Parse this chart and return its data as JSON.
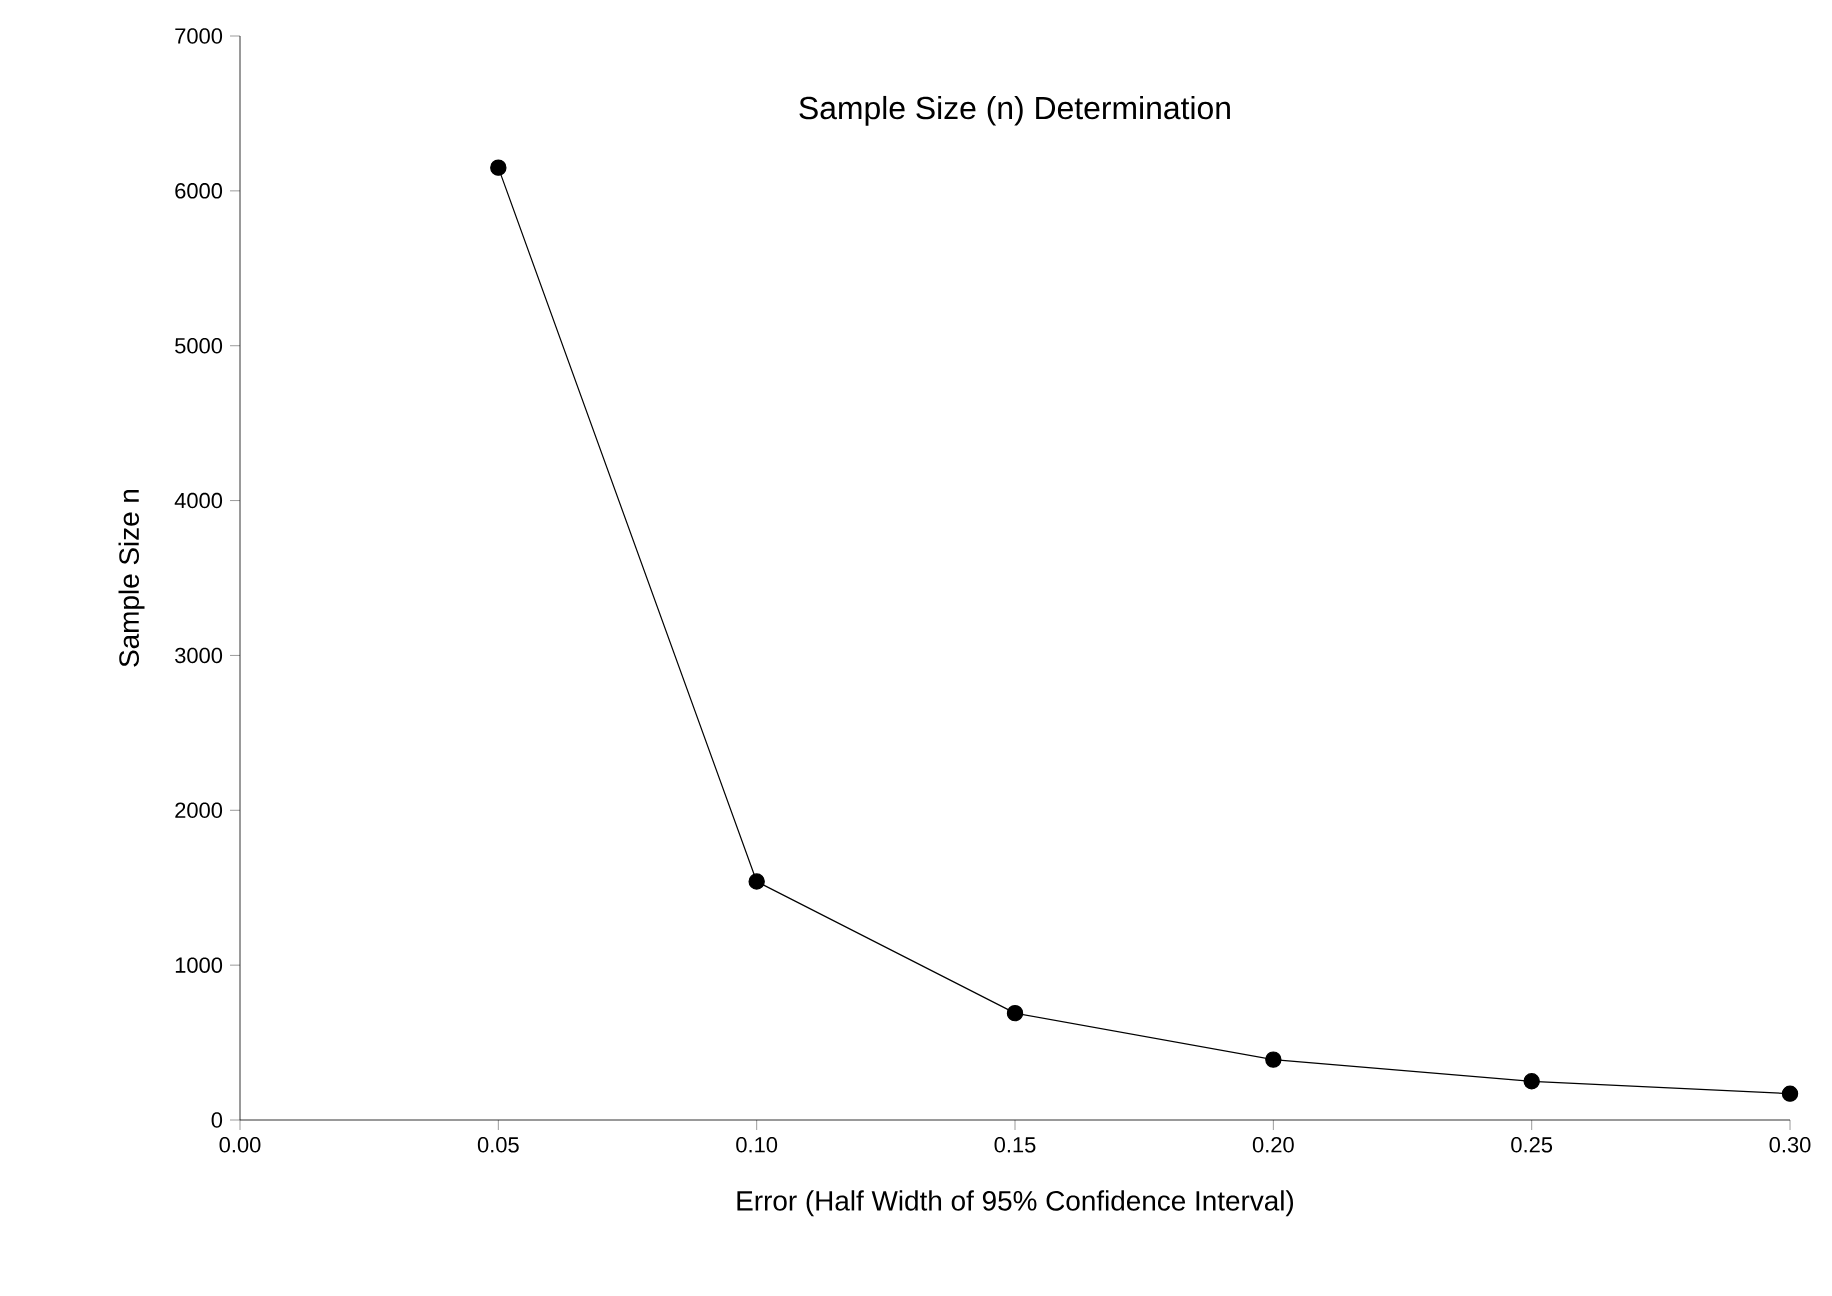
{
  "chart_data": {
    "type": "line",
    "title": "Sample Size (n) Determination",
    "xlabel": "Error (Half Width of 95% Confidence Interval)",
    "ylabel": "Sample Size n",
    "x": [
      0.05,
      0.1,
      0.15,
      0.2,
      0.25,
      0.3
    ],
    "series": [
      {
        "color": "#000000",
        "values": [
          6150,
          1540,
          690,
          390,
          250,
          170
        ]
      }
    ],
    "xlim": [
      0,
      0.3
    ],
    "xticks": [
      {
        "value": 0,
        "label": "0.00"
      },
      {
        "value": 0.05,
        "label": "0.05"
      },
      {
        "value": 0.1,
        "label": "0.10"
      },
      {
        "value": 0.15,
        "label": "0.15"
      },
      {
        "value": 0.2,
        "label": "0.20"
      },
      {
        "value": 0.25,
        "label": "0.25"
      },
      {
        "value": 0.3,
        "label": "0.30"
      }
    ],
    "ylim": [
      0,
      7000
    ],
    "yticks": [
      0,
      1000,
      2000,
      3000,
      4000,
      5000,
      6000,
      7000
    ],
    "grid": false,
    "marker": "circle",
    "line_style": "solid"
  }
}
